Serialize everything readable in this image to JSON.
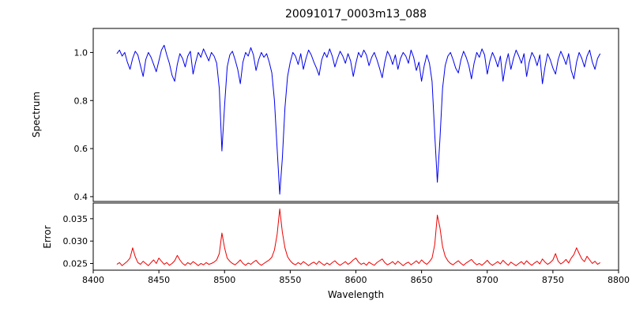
{
  "figure": {
    "title": "20091017_0003m13_088",
    "xlabel": "Wavelength",
    "background": "#ffffff"
  },
  "chart_data": {
    "type": "line",
    "title": "20091017_0003m13_088",
    "xlabel": "Wavelength",
    "grid": false,
    "legend": "none",
    "x_start": 8418,
    "x_step": 2,
    "x_axis": {
      "min": 8400,
      "max": 8800,
      "ticks": [
        8400,
        8450,
        8500,
        8550,
        8600,
        8650,
        8700,
        8750,
        8800
      ],
      "tick_labels": [
        "8400",
        "8450",
        "8500",
        "8550",
        "8600",
        "8650",
        "8700",
        "8750",
        "8800"
      ]
    },
    "panels": [
      {
        "name": "spectrum",
        "ylabel": "Spectrum",
        "color": "#0000ee",
        "ylim": [
          0.38,
          1.1
        ],
        "yticks": [
          0.4,
          0.6,
          0.8,
          1.0
        ],
        "ytick_labels": [
          "0.4",
          "0.6",
          "0.8",
          "1.0"
        ],
        "values": [
          0.995,
          1.01,
          0.985,
          1.0,
          0.96,
          0.93,
          0.975,
          1.005,
          0.99,
          0.945,
          0.9,
          0.97,
          1.0,
          0.98,
          0.95,
          0.92,
          0.965,
          1.01,
          1.03,
          0.99,
          0.955,
          0.905,
          0.88,
          0.95,
          0.995,
          0.975,
          0.94,
          0.985,
          1.005,
          0.91,
          0.96,
          1.0,
          0.98,
          1.015,
          0.99,
          0.965,
          1.0,
          0.985,
          0.955,
          0.85,
          0.59,
          0.78,
          0.94,
          0.99,
          1.005,
          0.97,
          0.93,
          0.87,
          0.96,
          1.0,
          0.985,
          1.02,
          0.99,
          0.925,
          0.97,
          1.0,
          0.98,
          0.995,
          0.96,
          0.915,
          0.8,
          0.6,
          0.41,
          0.56,
          0.77,
          0.9,
          0.96,
          1.0,
          0.985,
          0.95,
          0.995,
          0.93,
          0.975,
          1.01,
          0.99,
          0.96,
          0.935,
          0.905,
          0.97,
          1.0,
          0.98,
          1.015,
          0.985,
          0.94,
          0.975,
          1.005,
          0.985,
          0.955,
          0.995,
          0.965,
          0.9,
          0.955,
          1.0,
          0.98,
          1.01,
          0.99,
          0.945,
          0.98,
          1.0,
          0.97,
          0.935,
          0.895,
          0.96,
          1.005,
          0.985,
          0.95,
          0.99,
          0.93,
          0.975,
          1.0,
          0.985,
          0.955,
          1.01,
          0.98,
          0.925,
          0.96,
          0.88,
          0.945,
          0.99,
          0.955,
          0.88,
          0.66,
          0.46,
          0.64,
          0.85,
          0.945,
          0.985,
          1.0,
          0.97,
          0.935,
          0.915,
          0.97,
          1.005,
          0.98,
          0.945,
          0.89,
          0.955,
          1.0,
          0.98,
          1.015,
          0.99,
          0.91,
          0.965,
          1.0,
          0.975,
          0.94,
          0.985,
          0.88,
          0.95,
          0.995,
          0.93,
          0.975,
          1.01,
          0.985,
          0.955,
          0.995,
          0.9,
          0.96,
          1.0,
          0.98,
          0.945,
          0.99,
          0.87,
          0.94,
          0.995,
          0.97,
          0.935,
          0.91,
          0.97,
          1.005,
          0.98,
          0.95,
          0.995,
          0.925,
          0.89,
          0.96,
          1.0,
          0.975,
          0.94,
          0.985,
          1.01,
          0.96,
          0.93,
          0.975,
          0.995
        ]
      },
      {
        "name": "error",
        "ylabel": "Error",
        "color": "#ee0000",
        "ylim": [
          0.0235,
          0.0385
        ],
        "yticks": [
          0.025,
          0.03,
          0.035
        ],
        "ytick_labels": [
          "0.025",
          "0.030",
          "0.035"
        ],
        "values": [
          0.0248,
          0.0252,
          0.0245,
          0.025,
          0.0255,
          0.0262,
          0.0285,
          0.0265,
          0.0252,
          0.0248,
          0.0255,
          0.025,
          0.0245,
          0.0252,
          0.0258,
          0.025,
          0.0262,
          0.0255,
          0.0248,
          0.0252,
          0.0246,
          0.025,
          0.0256,
          0.0268,
          0.0258,
          0.025,
          0.0246,
          0.0252,
          0.0248,
          0.0254,
          0.025,
          0.0245,
          0.025,
          0.0247,
          0.0252,
          0.0248,
          0.025,
          0.0253,
          0.0258,
          0.0272,
          0.0318,
          0.0285,
          0.0262,
          0.0255,
          0.025,
          0.0247,
          0.0252,
          0.0258,
          0.025,
          0.0246,
          0.0251,
          0.0248,
          0.0253,
          0.0257,
          0.025,
          0.0246,
          0.025,
          0.0254,
          0.0258,
          0.0264,
          0.028,
          0.0315,
          0.0372,
          0.032,
          0.0285,
          0.0265,
          0.0256,
          0.025,
          0.0247,
          0.0252,
          0.0248,
          0.0254,
          0.025,
          0.0245,
          0.025,
          0.0253,
          0.0248,
          0.0255,
          0.025,
          0.0246,
          0.0251,
          0.0247,
          0.0252,
          0.0256,
          0.025,
          0.0246,
          0.025,
          0.0254,
          0.0248,
          0.0252,
          0.0258,
          0.0262,
          0.0253,
          0.0248,
          0.0251,
          0.0246,
          0.0253,
          0.0249,
          0.0246,
          0.0252,
          0.0256,
          0.026,
          0.0252,
          0.0247,
          0.025,
          0.0254,
          0.0248,
          0.0255,
          0.025,
          0.0245,
          0.025,
          0.0253,
          0.0247,
          0.0251,
          0.0256,
          0.025,
          0.0258,
          0.0252,
          0.0248,
          0.0254,
          0.0262,
          0.0292,
          0.0358,
          0.033,
          0.0288,
          0.0266,
          0.0256,
          0.025,
          0.0247,
          0.0252,
          0.0256,
          0.025,
          0.0246,
          0.0251,
          0.0255,
          0.0259,
          0.0252,
          0.0247,
          0.025,
          0.0246,
          0.0251,
          0.0257,
          0.025,
          0.0246,
          0.025,
          0.0254,
          0.0249,
          0.0257,
          0.0251,
          0.0246,
          0.0253,
          0.0249,
          0.0245,
          0.025,
          0.0254,
          0.0248,
          0.0256,
          0.025,
          0.0246,
          0.0251,
          0.0255,
          0.0249,
          0.026,
          0.0253,
          0.0248,
          0.0252,
          0.0258,
          0.0272,
          0.0255,
          0.0249,
          0.0253,
          0.0259,
          0.0251,
          0.0262,
          0.027,
          0.0285,
          0.0272,
          0.026,
          0.0254,
          0.0266,
          0.0258,
          0.025,
          0.0255,
          0.0248,
          0.0252
        ]
      }
    ]
  }
}
